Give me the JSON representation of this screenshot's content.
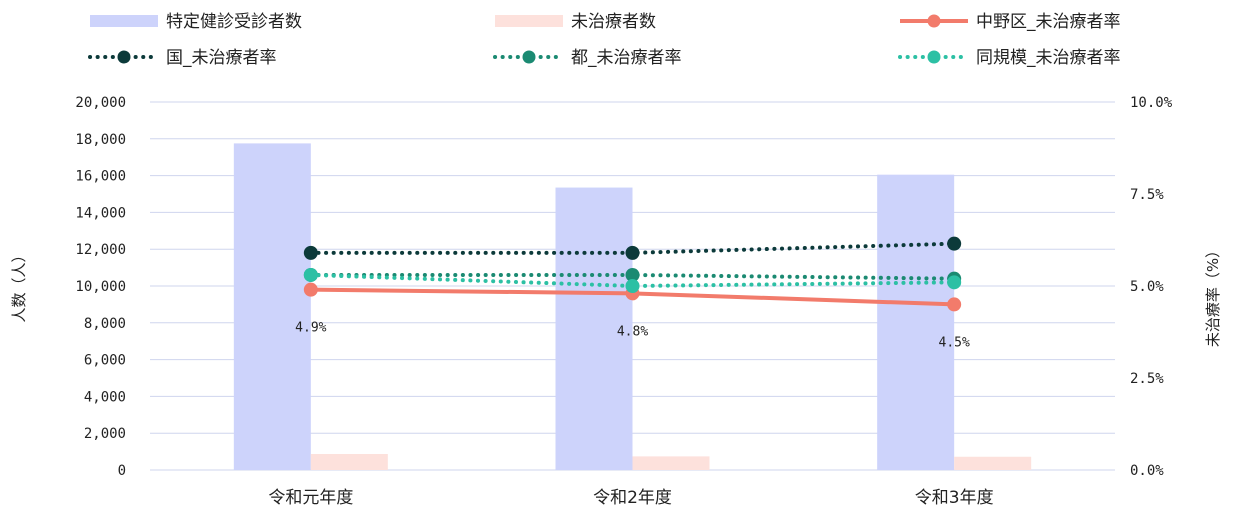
{
  "chart_data": {
    "type": "bar",
    "categories": [
      "令和元年度",
      "令和2年度",
      "令和3年度"
    ],
    "y_left": {
      "label": "人数（人）",
      "lim": [
        0,
        20000
      ],
      "ticks": [
        "0",
        "2,000",
        "4,000",
        "6,000",
        "8,000",
        "10,000",
        "12,000",
        "14,000",
        "16,000",
        "18,000",
        "20,000"
      ]
    },
    "y_right": {
      "label": "未治療率（%）",
      "lim": [
        0,
        10
      ],
      "ticks": [
        "0.0%",
        "2.5%",
        "5.0%",
        "7.5%",
        "10.0%"
      ]
    },
    "bar_series": [
      {
        "name": "特定健診受診者数",
        "color": "#cdd3fb",
        "values": [
          17750,
          15350,
          16050
        ]
      },
      {
        "name": "未治療者数",
        "color": "#fde1dc",
        "values": [
          870,
          740,
          720
        ]
      }
    ],
    "line_series": [
      {
        "name": "中野区_未治療者率",
        "color": "#f27b6b",
        "style": "solid",
        "values": [
          4.9,
          4.8,
          4.5
        ],
        "labels": [
          "4.9%",
          "4.8%",
          "4.5%"
        ]
      },
      {
        "name": "国_未治療者率",
        "color": "#0c3a3a",
        "style": "dotted",
        "values": [
          5.9,
          5.9,
          6.15
        ]
      },
      {
        "name": "都_未治療者率",
        "color": "#1b8a72",
        "style": "dotted",
        "values": [
          5.3,
          5.3,
          5.2
        ]
      },
      {
        "name": "同規模_未治療者率",
        "color": "#2cc0a4",
        "style": "dotted",
        "values": [
          5.3,
          5.0,
          5.1
        ]
      }
    ],
    "grid": true,
    "legend_position": "top"
  }
}
